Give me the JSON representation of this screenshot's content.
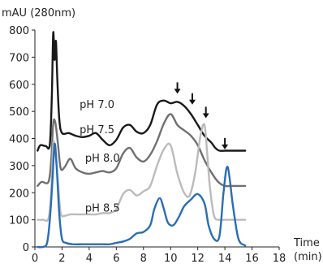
{
  "chart_data": {
    "type": "line",
    "ylabel": "mAU (280nm)",
    "xlabel_line1": "Time",
    "xlabel_line2": "(min)",
    "xlim": [
      0,
      18
    ],
    "ylim": [
      0,
      800
    ],
    "xticks": [
      0,
      2,
      4,
      6,
      8,
      10,
      12,
      14,
      16,
      18
    ],
    "yticks": [
      0,
      100,
      200,
      300,
      400,
      500,
      600,
      700,
      800
    ],
    "grid": false,
    "legend": "none",
    "series": [
      {
        "name": "pH 7.0",
        "color": "#1a1a1a",
        "label_at": [
          3.3,
          512
        ],
        "x": [
          0.2,
          0.4,
          0.8,
          1.1,
          1.25,
          1.35,
          1.45,
          1.55,
          1.65,
          1.8,
          2.0,
          2.5,
          3.0,
          3.5,
          4.0,
          4.5,
          5.0,
          5.5,
          6.0,
          6.5,
          7.0,
          7.5,
          8.0,
          8.5,
          9.0,
          9.5,
          10.0,
          10.5,
          11.0,
          11.5,
          12.0,
          12.5,
          13.0,
          13.3,
          13.6,
          14.0,
          14.5,
          15.0,
          15.5
        ],
        "y": [
          355,
          375,
          372,
          378,
          560,
          790,
          690,
          760,
          620,
          470,
          420,
          420,
          410,
          405,
          410,
          420,
          395,
          375,
          395,
          440,
          450,
          425,
          420,
          450,
          525,
          540,
          530,
          535,
          520,
          490,
          450,
          410,
          385,
          365,
          355,
          355,
          355,
          355,
          355
        ]
      },
      {
        "name": "pH 7.5",
        "color": "#707070",
        "label_at": [
          3.3,
          420
        ],
        "x": [
          0.2,
          0.5,
          1.0,
          1.2,
          1.35,
          1.5,
          1.7,
          1.9,
          2.2,
          2.6,
          3.0,
          3.5,
          4.0,
          4.5,
          5.0,
          5.5,
          6.0,
          6.5,
          7.0,
          7.5,
          8.0,
          8.5,
          9.0,
          9.5,
          10.0,
          10.5,
          11.0,
          11.5,
          12.0,
          12.5,
          13.0,
          13.5,
          14.0,
          14.5,
          15.0,
          15.5
        ],
        "y": [
          225,
          240,
          240,
          320,
          455,
          460,
          380,
          290,
          295,
          325,
          290,
          275,
          270,
          275,
          280,
          275,
          290,
          345,
          365,
          330,
          315,
          340,
          390,
          455,
          490,
          450,
          430,
          410,
          375,
          320,
          275,
          240,
          225,
          225,
          225,
          225
        ]
      },
      {
        "name": "pH 8.0",
        "color": "#bbbbbb",
        "label_at": [
          3.7,
          315
        ],
        "x": [
          0.2,
          0.6,
          1.0,
          1.2,
          1.35,
          1.5,
          1.7,
          1.9,
          2.2,
          2.6,
          3.0,
          3.5,
          4.0,
          4.5,
          5.0,
          5.5,
          6.0,
          6.5,
          7.0,
          7.5,
          8.0,
          8.5,
          9.0,
          9.5,
          10.0,
          10.5,
          11.0,
          11.4,
          11.8,
          12.2,
          12.5,
          12.7,
          12.9,
          13.2,
          13.6,
          14.0,
          15.5
        ],
        "y": [
          100,
          100,
          105,
          200,
          380,
          350,
          240,
          125,
          115,
          120,
          120,
          120,
          120,
          120,
          125,
          125,
          140,
          195,
          210,
          190,
          205,
          225,
          300,
          360,
          375,
          270,
          200,
          190,
          270,
          410,
          450,
          340,
          220,
          115,
          100,
          100,
          100
        ]
      },
      {
        "name": "pH 8.5",
        "color": "#2a6db5",
        "label_at": [
          3.7,
          130
        ],
        "x": [
          0.2,
          0.6,
          0.9,
          1.1,
          1.3,
          1.45,
          1.6,
          1.8,
          2.0,
          2.3,
          2.8,
          3.5,
          4.0,
          4.5,
          5.0,
          5.5,
          6.0,
          6.5,
          7.0,
          7.5,
          8.0,
          8.5,
          8.8,
          9.2,
          9.5,
          9.8,
          10.2,
          10.6,
          11.0,
          11.5,
          12.0,
          12.5,
          12.8,
          13.2,
          13.6,
          13.9,
          14.2,
          14.6,
          15.0,
          15.5
        ],
        "y": [
          0,
          0,
          15,
          100,
          250,
          380,
          300,
          120,
          30,
          15,
          10,
          10,
          10,
          10,
          10,
          10,
          15,
          20,
          30,
          50,
          55,
          80,
          140,
          180,
          140,
          90,
          80,
          110,
          150,
          175,
          195,
          160,
          80,
          30,
          40,
          200,
          295,
          150,
          30,
          5
        ]
      }
    ],
    "annotations": [
      {
        "type": "arrow-down",
        "x": 10.5,
        "y": 565
      },
      {
        "type": "arrow-down",
        "x": 11.6,
        "y": 525
      },
      {
        "type": "arrow-down",
        "x": 12.6,
        "y": 475
      },
      {
        "type": "arrow-down",
        "x": 14.0,
        "y": 360
      }
    ]
  }
}
